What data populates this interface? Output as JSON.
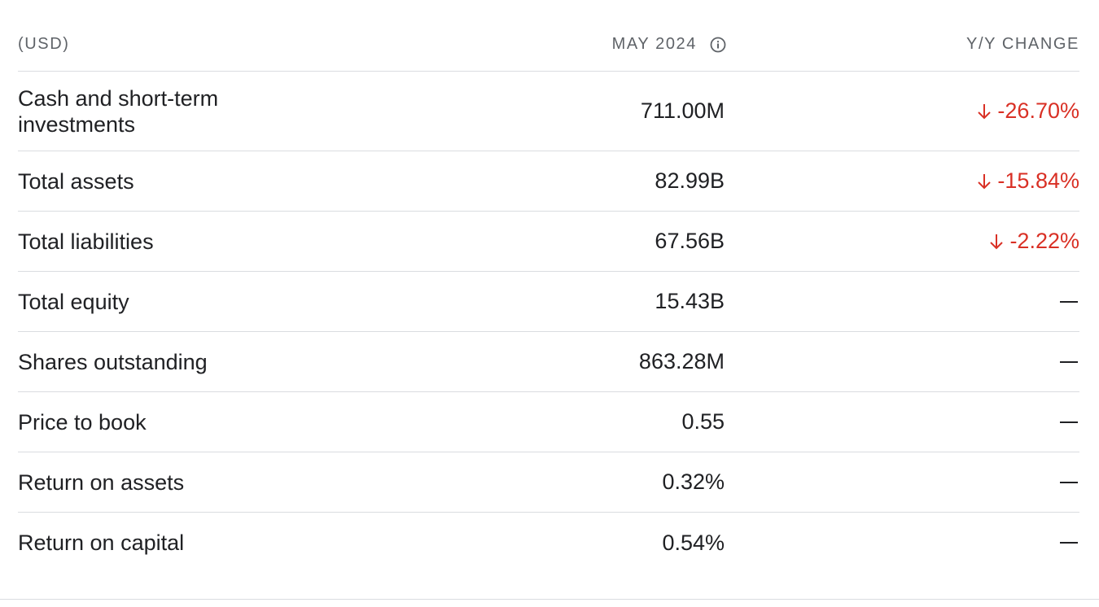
{
  "header": {
    "label": "(USD)",
    "period": "MAY 2024",
    "change": "Y/Y CHANGE",
    "info_icon": "info-circle-icon"
  },
  "rows": [
    {
      "label": "Cash and short-term investments",
      "value": "711.00M",
      "change": "-26.70%",
      "direction": "down"
    },
    {
      "label": "Total assets",
      "value": "82.99B",
      "change": "-15.84%",
      "direction": "down"
    },
    {
      "label": "Total liabilities",
      "value": "67.56B",
      "change": "-2.22%",
      "direction": "down"
    },
    {
      "label": "Total equity",
      "value": "15.43B",
      "change": "—",
      "direction": "none"
    },
    {
      "label": "Shares outstanding",
      "value": "863.28M",
      "change": "—",
      "direction": "none"
    },
    {
      "label": "Price to book",
      "value": "0.55",
      "change": "—",
      "direction": "none"
    },
    {
      "label": "Return on assets",
      "value": "0.32%",
      "change": "—",
      "direction": "none"
    },
    {
      "label": "Return on capital",
      "value": "0.54%",
      "change": "—",
      "direction": "none"
    }
  ],
  "colors": {
    "negative": "#d93025",
    "text": "#202124",
    "muted": "#5f6368",
    "divider": "#dadce0"
  }
}
